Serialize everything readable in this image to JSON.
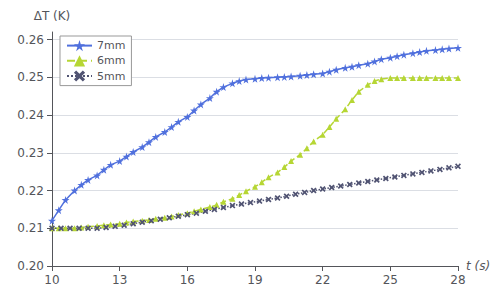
{
  "chart_data": {
    "type": "line",
    "xlabel": "t (s)",
    "ylabel": "ΔT (K)",
    "xlim": [
      10,
      28
    ],
    "ylim": [
      0.2,
      0.262
    ],
    "xticks": [
      10,
      13,
      16,
      19,
      22,
      25,
      28
    ],
    "yticks": [
      {
        "value": 0.2,
        "label": "0.20"
      },
      0.21,
      0.22,
      0.23,
      0.24,
      0.25,
      0.26
    ],
    "grid": true,
    "legend": "upper left",
    "series": [
      {
        "name": "7mm",
        "marker": "star",
        "line_style": "solid",
        "x": [
          10.0,
          10.3,
          10.6,
          11.0,
          11.3,
          11.6,
          12.0,
          12.3,
          12.6,
          13.0,
          13.3,
          13.6,
          14.0,
          14.3,
          14.6,
          15.0,
          15.3,
          15.6,
          16.0,
          16.3,
          16.6,
          17.0,
          17.3,
          17.6,
          18.0,
          18.3,
          18.6,
          19.0,
          19.3,
          19.6,
          20.0,
          20.3,
          20.6,
          21.0,
          21.3,
          21.6,
          22.0,
          22.3,
          22.6,
          23.0,
          23.3,
          23.6,
          24.0,
          24.3,
          24.6,
          25.0,
          25.3,
          25.6,
          26.0,
          26.3,
          26.6,
          27.0,
          27.3,
          27.6,
          28.0
        ],
        "values": [
          0.212,
          0.2148,
          0.2175,
          0.22,
          0.2215,
          0.2228,
          0.224,
          0.2255,
          0.2268,
          0.2278,
          0.229,
          0.2302,
          0.2315,
          0.2328,
          0.2342,
          0.2355,
          0.2368,
          0.2382,
          0.2395,
          0.2412,
          0.2428,
          0.2445,
          0.2462,
          0.2474,
          0.2484,
          0.249,
          0.2494,
          0.2496,
          0.2498,
          0.2499,
          0.25,
          0.2501,
          0.2502,
          0.2504,
          0.2506,
          0.2508,
          0.251,
          0.2515,
          0.252,
          0.2525,
          0.2528,
          0.2532,
          0.2536,
          0.2542,
          0.2548,
          0.2552,
          0.2556,
          0.256,
          0.2564,
          0.2567,
          0.257,
          0.2572,
          0.2574,
          0.2576,
          0.2578
        ]
      },
      {
        "name": "6mm",
        "marker": "triangle",
        "line_style": "dashed",
        "x": [
          10.0,
          10.3,
          10.6,
          11.0,
          11.3,
          11.6,
          12.0,
          12.3,
          12.6,
          13.0,
          13.3,
          13.6,
          14.0,
          14.3,
          14.6,
          15.0,
          15.3,
          15.6,
          16.0,
          16.3,
          16.6,
          17.0,
          17.3,
          17.6,
          18.0,
          18.3,
          18.6,
          19.0,
          19.3,
          19.6,
          20.0,
          20.3,
          20.6,
          21.0,
          21.3,
          21.6,
          22.0,
          22.3,
          22.6,
          23.0,
          23.3,
          23.6,
          24.0,
          24.3,
          24.6,
          25.0,
          25.3,
          25.6,
          26.0,
          26.3,
          26.6,
          27.0,
          27.3,
          27.6,
          28.0
        ],
        "values": [
          0.21,
          0.21,
          0.21,
          0.21,
          0.2102,
          0.2104,
          0.2106,
          0.2108,
          0.211,
          0.2112,
          0.2115,
          0.2118,
          0.212,
          0.2122,
          0.2125,
          0.2128,
          0.2131,
          0.2135,
          0.214,
          0.2145,
          0.215,
          0.2156,
          0.2162,
          0.217,
          0.2178,
          0.2188,
          0.2198,
          0.221,
          0.2222,
          0.2235,
          0.2248,
          0.2262,
          0.2278,
          0.2295,
          0.2312,
          0.233,
          0.2348,
          0.2368,
          0.239,
          0.2415,
          0.244,
          0.2462,
          0.248,
          0.249,
          0.2495,
          0.2498,
          0.2498,
          0.2498,
          0.2498,
          0.2498,
          0.2498,
          0.2498,
          0.2498,
          0.2498,
          0.2498
        ]
      },
      {
        "name": "5mm",
        "marker": "x",
        "line_style": "dotted",
        "x": [
          10.0,
          10.4,
          10.8,
          11.2,
          11.6,
          12.0,
          12.4,
          12.8,
          13.2,
          13.6,
          14.0,
          14.4,
          14.8,
          15.2,
          15.6,
          16.0,
          16.4,
          16.8,
          17.2,
          17.6,
          18.0,
          18.4,
          18.8,
          19.2,
          19.6,
          20.0,
          20.4,
          20.8,
          21.2,
          21.6,
          22.0,
          22.4,
          22.8,
          23.2,
          23.6,
          24.0,
          24.4,
          24.8,
          25.2,
          25.6,
          26.0,
          26.4,
          26.8,
          27.2,
          27.6,
          28.0
        ],
        "values": [
          0.21,
          0.21,
          0.21,
          0.21,
          0.21,
          0.21,
          0.2102,
          0.2105,
          0.2108,
          0.2112,
          0.2116,
          0.212,
          0.2124,
          0.2128,
          0.2132,
          0.2136,
          0.214,
          0.2145,
          0.215,
          0.2155,
          0.216,
          0.2164,
          0.2168,
          0.2172,
          0.2176,
          0.218,
          0.2185,
          0.219,
          0.2195,
          0.22,
          0.2204,
          0.2208,
          0.2212,
          0.2216,
          0.222,
          0.2224,
          0.2228,
          0.2232,
          0.2236,
          0.224,
          0.2244,
          0.2248,
          0.2252,
          0.2256,
          0.226,
          0.2264
        ]
      }
    ]
  }
}
